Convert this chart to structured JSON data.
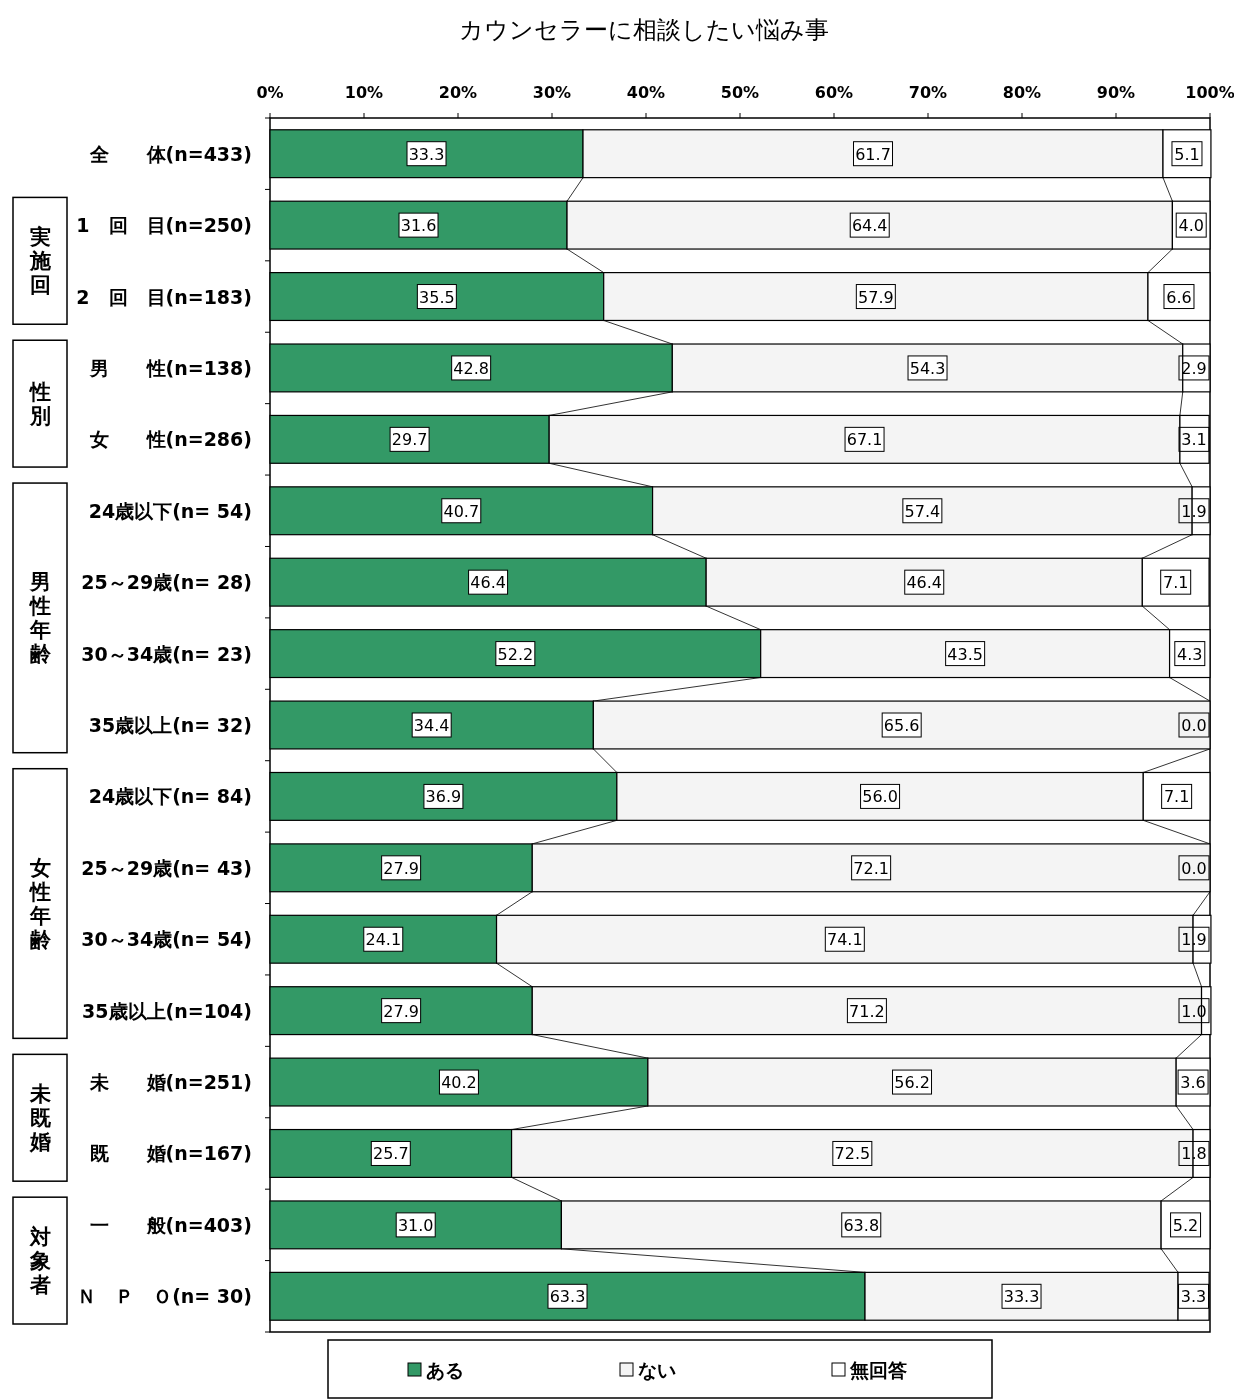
{
  "chart_data": {
    "type": "bar",
    "orientation": "horizontal",
    "stacked": true,
    "title": "カウンセラーに相談したい悩み事",
    "categories": [
      "全　　体(n=433)",
      "1　回　目(n=250)",
      "2　回　目(n=183)",
      "男　　性(n=138)",
      "女　　性(n=286)",
      "24歳以下(n= 54)",
      "25～29歳(n= 28)",
      "30～34歳(n= 23)",
      "35歳以上(n= 32)",
      "24歳以下(n= 84)",
      "25～29歳(n= 43)",
      "30～34歳(n= 54)",
      "35歳以上(n=104)",
      "未　　婚(n=251)",
      "既　　婚(n=167)",
      "一　　般(n=403)",
      "Ｎ　Ｐ　Ｏ(n= 30)"
    ],
    "series": [
      {
        "name": "ある",
        "color": "#339966",
        "values": [
          33.3,
          31.6,
          35.5,
          42.8,
          29.7,
          40.7,
          46.4,
          52.2,
          34.4,
          36.9,
          27.9,
          24.1,
          27.9,
          40.2,
          25.7,
          31.0,
          63.3
        ],
        "value_labels": [
          "33.3",
          "31.6",
          "35.5",
          "42.8",
          "29.7",
          "40.7",
          "46.4",
          "52.2",
          "34.4",
          "36.9",
          "27.9",
          "24.1",
          "27.9",
          "40.2",
          "25.7",
          "31.0",
          "63.3"
        ]
      },
      {
        "name": "ない",
        "color": "#f4f4f4",
        "values": [
          61.7,
          64.4,
          57.9,
          54.3,
          67.1,
          57.4,
          46.4,
          43.5,
          65.6,
          56.0,
          72.1,
          74.1,
          71.2,
          56.2,
          72.5,
          63.8,
          33.3
        ],
        "value_labels": [
          "61.7",
          "64.4",
          "57.9",
          "54.3",
          "67.1",
          "57.4",
          "46.4",
          "43.5",
          "65.6",
          "56.0",
          "72.1",
          "74.1",
          "71.2",
          "56.2",
          "72.5",
          "63.8",
          "33.3"
        ]
      },
      {
        "name": "無回答",
        "color": "#ffffff",
        "values": [
          5.1,
          4.0,
          6.6,
          2.9,
          3.1,
          1.9,
          7.1,
          4.3,
          0.0,
          7.1,
          0.0,
          1.9,
          1.0,
          3.6,
          1.8,
          5.2,
          3.3
        ],
        "value_labels": [
          "5.1",
          "4.0",
          "6.6",
          "2.9",
          "3.1",
          "1.9",
          "7.1",
          "4.3",
          "0.0",
          "7.1",
          "0.0",
          "1.9",
          "1.0",
          "3.6",
          "1.8",
          "5.2",
          "3.3"
        ]
      }
    ],
    "xlim": [
      0,
      100
    ],
    "xticks": [
      {
        "value": 0,
        "label": "0%"
      },
      {
        "value": 10,
        "label": "10%"
      },
      {
        "value": 20,
        "label": "20%"
      },
      {
        "value": 30,
        "label": "30%"
      },
      {
        "value": 40,
        "label": "40%"
      },
      {
        "value": 50,
        "label": "50%"
      },
      {
        "value": 60,
        "label": "60%"
      },
      {
        "value": 70,
        "label": "70%"
      },
      {
        "value": 80,
        "label": "80%"
      },
      {
        "value": 90,
        "label": "90%"
      },
      {
        "value": 100,
        "label": "100%"
      }
    ],
    "annotations": [
      "実施回",
      "性別",
      "男性年齢",
      "女性年齢",
      "未既婚",
      "対象者"
    ],
    "legend": "bottom",
    "grid": false
  }
}
